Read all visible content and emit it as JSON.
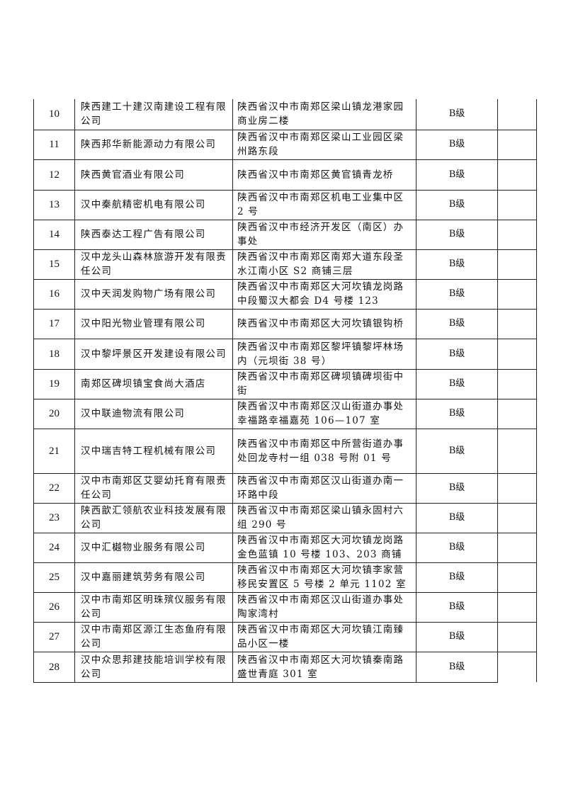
{
  "rows": [
    {
      "no": "10",
      "name": "陕西建工十建汉南建设工程有限公司",
      "address": "陕西省汉中市南郑区梁山镇龙港家园商业房二楼",
      "grade": "B级"
    },
    {
      "no": "11",
      "name": "陕西邦华新能源动力有限公司",
      "address": "陕西省汉中市南郑区梁山工业园区梁州路东段",
      "grade": "B级"
    },
    {
      "no": "12",
      "name": "陕西黄官酒业有限公司",
      "address": "陕西省汉中市南郑区黄官镇青龙桥",
      "grade": "B级"
    },
    {
      "no": "13",
      "name": "汉中秦航精密机电有限公司",
      "address": "陕西省汉中市南郑区机电工业集中区 2 号",
      "grade": "B级"
    },
    {
      "no": "14",
      "name": "陕西泰达工程广告有限公司",
      "address": "陕西省汉中市经济开发区（南区）办事处",
      "grade": "B级"
    },
    {
      "no": "15",
      "name": "汉中龙头山森林旅游开发有限责任公司",
      "address": "陕西省汉中市南郑区南郑大道东段圣水江南小区 S2 商铺三层",
      "grade": "B级"
    },
    {
      "no": "16",
      "name": "汉中天润发购物广场有限公司",
      "address": "陕西省汉中市南郑区大河坎镇龙岗路中段蜀汉大都会 D4 号楼 123",
      "grade": "B级"
    },
    {
      "no": "17",
      "name": "汉中阳光物业管理有限公司",
      "address": "陕西省汉中市南郑区大河坎镇银钩桥",
      "grade": "B级"
    },
    {
      "no": "18",
      "name": "汉中黎坪景区开发建设有限公司",
      "address": "陕西省汉中市南郑区黎坪镇黎坪林场内（元坝街 38 号）",
      "grade": "B级"
    },
    {
      "no": "19",
      "name": "南郑区碑坝镇宝食尚大酒店",
      "address": "陕西省汉中市南郑区碑坝镇碑坝街中街",
      "grade": "B级"
    },
    {
      "no": "20",
      "name": "汉中联迪物流有限公司",
      "address": "陕西省汉中市南郑区汉山街道办事处幸福路幸福嘉苑 106—107 室",
      "grade": "B级"
    },
    {
      "no": "21",
      "name": "汉中瑞吉特工程机械有限公司",
      "address": "陕西省汉中市南郑区中所营街道办事处回龙寺村一组 038 号附 01 号",
      "grade": "B级"
    },
    {
      "no": "22",
      "name": "汉中市南郑区艾婴幼托育有限责任公司",
      "address": "陕西省汉中市南郑区汉山街道办南一环路中段",
      "grade": "B级"
    },
    {
      "no": "23",
      "name": "陕西歆汇领航农业科技发展有限公司",
      "address": "陕西省汉中市南郑区梁山镇永固村六组 290 号",
      "grade": "B级"
    },
    {
      "no": "24",
      "name": "汉中汇樾物业服务有限公司",
      "address": "陕西省汉中市南郑区大河坎镇龙岗路金色蓝镇 10 号楼 103、203 商铺",
      "grade": "B级"
    },
    {
      "no": "25",
      "name": "汉中嘉丽建筑劳务有限公司",
      "address": "陕西省汉中市南郑区大河坎镇李家营移民安置区 5 号楼 2 单元 1102 室",
      "grade": "B级"
    },
    {
      "no": "26",
      "name": "汉中市南郑区明珠殡仪服务有限公司",
      "address": "陕西省汉中市南郑区汉山街道办事处陶家湾村",
      "grade": "B级"
    },
    {
      "no": "27",
      "name": "汉中市南郑区源江生态鱼府有限公司",
      "address": "陕西省汉中市南郑区大河坎镇江南臻品小区一楼",
      "grade": "B级"
    },
    {
      "no": "28",
      "name": "汉中众思邦建技能培训学校有限公司",
      "address": "陕西省汉中市南郑区大河坎镇秦南路盛世青庭 301 室",
      "grade": "B级"
    }
  ]
}
